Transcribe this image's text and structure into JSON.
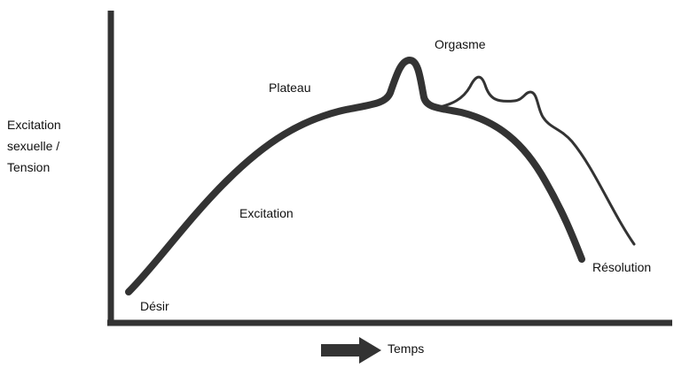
{
  "y_axis_label": [
    "Excitation",
    "sexuelle /",
    "Tension"
  ],
  "x_axis_label": "Temps",
  "phases": {
    "desire": "Désir",
    "excitement": "Excitation",
    "plateau": "Plateau",
    "orgasm": "Orgasme",
    "resolution": "Résolution"
  }
}
